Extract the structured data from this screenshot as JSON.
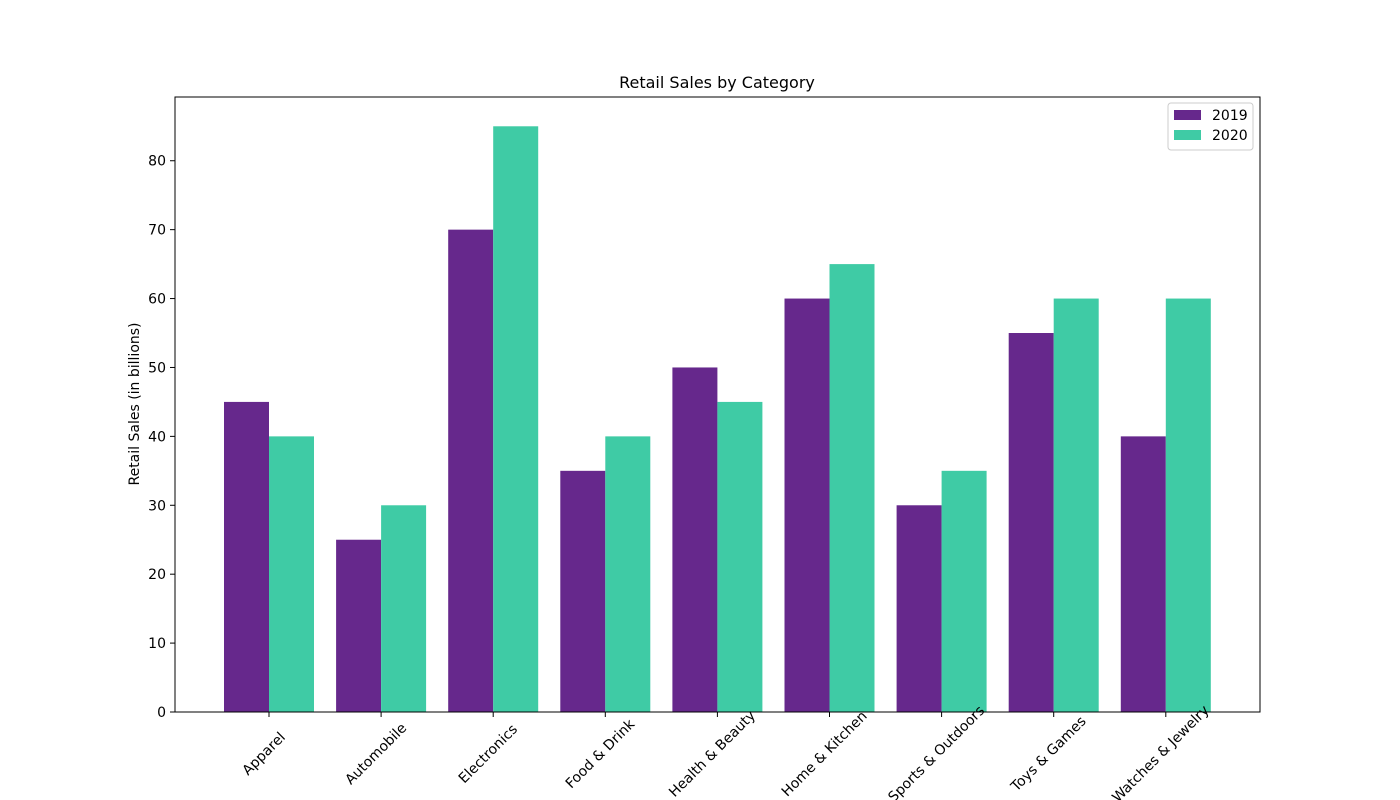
{
  "chart_data": {
    "type": "bar",
    "title": "Retail Sales by Category",
    "xlabel": "",
    "ylabel": "Retail Sales (in billions)",
    "categories": [
      "Apparel",
      "Automobile",
      "Electronics",
      "Food & Drink",
      "Health & Beauty",
      "Home & Kitchen",
      "Sports & Outdoors",
      "Toys & Games",
      "Watches & Jewelry"
    ],
    "series": [
      {
        "name": "2019",
        "color": "#66288c",
        "values": [
          45,
          25,
          70,
          35,
          50,
          60,
          30,
          55,
          40
        ]
      },
      {
        "name": "2020",
        "color": "#3fcba5",
        "values": [
          40,
          30,
          85,
          40,
          45,
          65,
          35,
          60,
          60
        ]
      }
    ],
    "ylim": [
      0,
      89.25
    ],
    "yticks": [
      0,
      10,
      20,
      30,
      40,
      50,
      60,
      70,
      80
    ],
    "grid": false,
    "legend_position": "top-right"
  }
}
